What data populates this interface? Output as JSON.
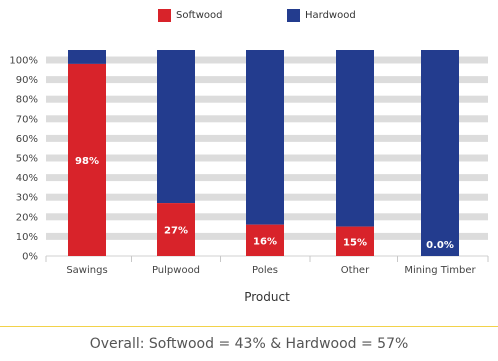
{
  "chart_data": {
    "type": "bar",
    "stacked": true,
    "categories": [
      "Sawings",
      "Pulpwood",
      "Poles",
      "Other",
      "Mining Timber"
    ],
    "series": [
      {
        "name": "Softwood",
        "color": "#d8232a",
        "values": [
          98,
          27,
          16,
          15,
          0.0
        ]
      },
      {
        "name": "Hardwood",
        "color": "#233c8e",
        "values": [
          2,
          73,
          84,
          85,
          100
        ]
      }
    ],
    "data_labels": [
      "98%",
      "27%",
      "16%",
      "15%",
      "0.0%"
    ],
    "y_ticks": [
      "0%",
      "10%",
      "20%",
      "30%",
      "40%",
      "50%",
      "60%",
      "70%",
      "80%",
      "90%",
      "100%"
    ],
    "ylim": [
      0,
      100
    ],
    "xlabel": "Product",
    "ylabel": "",
    "grid": true,
    "legend_position": "top"
  },
  "footer_text": "Overall: Softwood = 43% & Hardwood = 57%"
}
